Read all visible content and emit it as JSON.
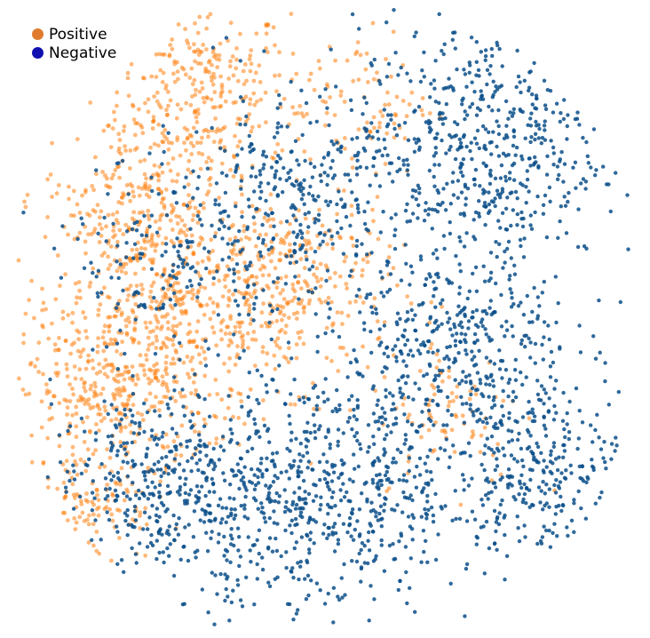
{
  "chart_data": {
    "type": "scatter",
    "title": "",
    "xlabel": "",
    "ylabel": "",
    "axes_visible": false,
    "grid": false,
    "legend_placement": "top-left",
    "series": [
      {
        "name": "Positive",
        "color": "#ff7f0e",
        "legend_color": "#e07b2e",
        "clusters": [
          {
            "cx": 0.3,
            "cy": 0.87,
            "spread": 0.07,
            "count": 260
          },
          {
            "cx": 0.25,
            "cy": 0.52,
            "spread": 0.1,
            "count": 520
          },
          {
            "cx": 0.15,
            "cy": 0.38,
            "spread": 0.08,
            "count": 320
          },
          {
            "cx": 0.45,
            "cy": 0.55,
            "spread": 0.08,
            "count": 280
          },
          {
            "cx": 0.18,
            "cy": 0.7,
            "spread": 0.07,
            "count": 200
          },
          {
            "cx": 0.55,
            "cy": 0.85,
            "spread": 0.06,
            "count": 90
          },
          {
            "cx": 0.7,
            "cy": 0.35,
            "spread": 0.06,
            "count": 80
          },
          {
            "cx": 0.12,
            "cy": 0.2,
            "spread": 0.05,
            "count": 90
          }
        ]
      },
      {
        "name": "Negative",
        "color": "#0b4f8a",
        "legend_color": "#1010b0",
        "clusters": [
          {
            "cx": 0.75,
            "cy": 0.78,
            "spread": 0.1,
            "count": 520
          },
          {
            "cx": 0.72,
            "cy": 0.45,
            "spread": 0.09,
            "count": 420
          },
          {
            "cx": 0.55,
            "cy": 0.22,
            "spread": 0.1,
            "count": 440
          },
          {
            "cx": 0.35,
            "cy": 0.2,
            "spread": 0.09,
            "count": 380
          },
          {
            "cx": 0.85,
            "cy": 0.25,
            "spread": 0.07,
            "count": 260
          },
          {
            "cx": 0.45,
            "cy": 0.68,
            "spread": 0.09,
            "count": 320
          },
          {
            "cx": 0.2,
            "cy": 0.25,
            "spread": 0.07,
            "count": 200
          },
          {
            "cx": 0.25,
            "cy": 0.6,
            "spread": 0.08,
            "count": 180
          }
        ]
      }
    ]
  }
}
